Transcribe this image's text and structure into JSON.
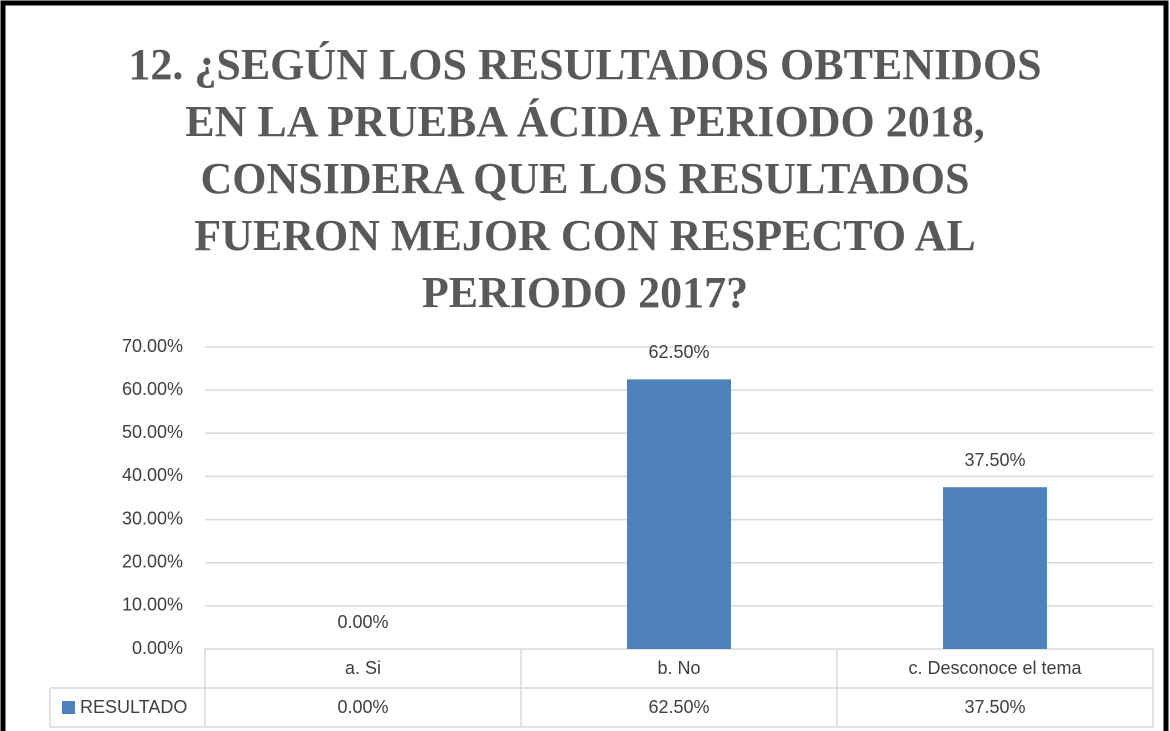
{
  "chart_data": {
    "type": "bar",
    "title": "12. ¿SEGÚN LOS RESULTADOS OBTENIDOS\nEN LA PRUEBA ÁCIDA PERIODO 2018,\nCONSIDERA QUE LOS RESULTADOS\nFUERON MEJOR CON RESPECTO AL\nPERIODO 2017?",
    "categories": [
      "a. Si",
      "b. No",
      "c. Desconoce el tema"
    ],
    "series": [
      {
        "name": "RESULTADO",
        "color": "#4f81bd",
        "values": [
          0,
          62.5,
          37.5
        ],
        "value_labels": [
          "0.00%",
          "62.50%",
          "37.50%"
        ]
      }
    ],
    "ylim": [
      0,
      70
    ],
    "yticks": [
      {
        "value": 0,
        "label": "0.00%"
      },
      {
        "value": 10,
        "label": "10.00%"
      },
      {
        "value": 20,
        "label": "20.00%"
      },
      {
        "value": 30,
        "label": "30.00%"
      },
      {
        "value": 40,
        "label": "40.00%"
      },
      {
        "value": 50,
        "label": "50.00%"
      },
      {
        "value": 60,
        "label": "60.00%"
      },
      {
        "value": 70,
        "label": "70.00%"
      }
    ],
    "grid": true,
    "data_table": true
  }
}
